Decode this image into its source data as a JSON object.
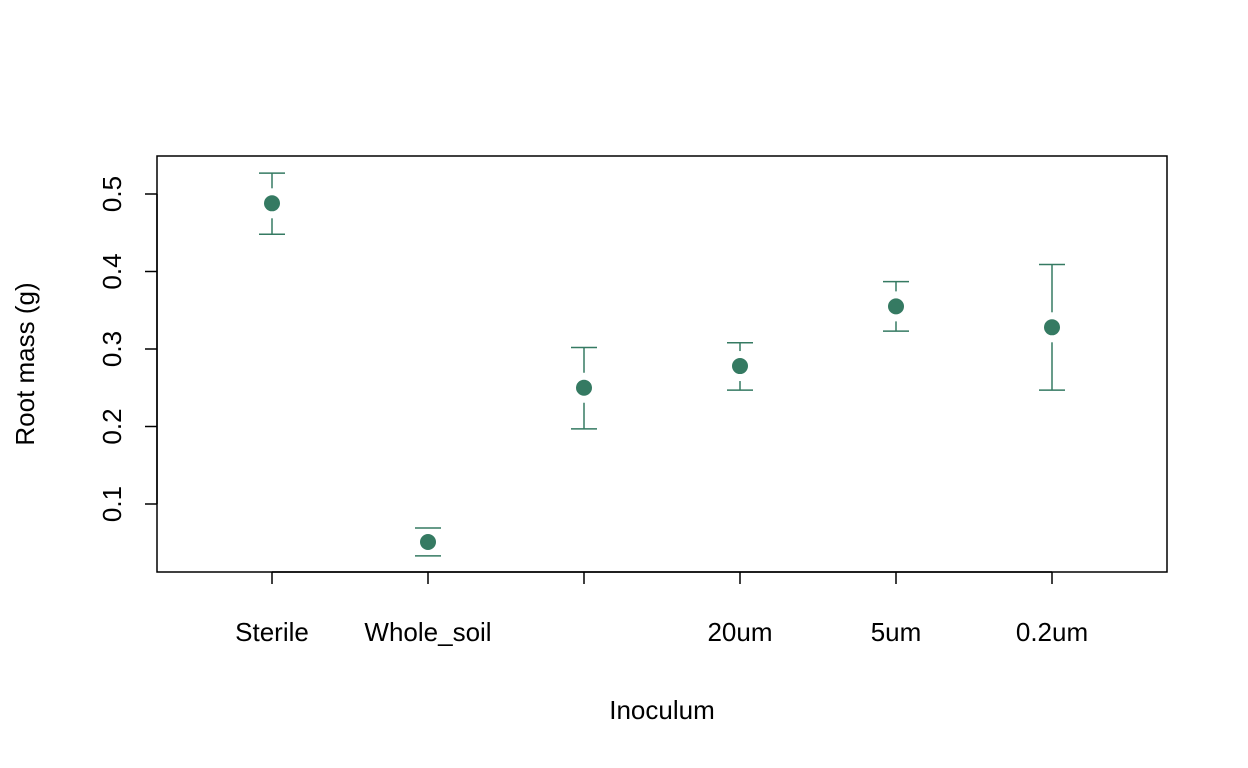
{
  "chart_data": {
    "type": "scatter",
    "title": "",
    "xlabel": "Inoculum",
    "ylabel": "Root mass (g)",
    "categories": [
      "Sterile",
      "Whole_soil",
      "",
      "20um",
      "5um",
      "0.2um"
    ],
    "series": [
      {
        "values": [
          0.488,
          0.051,
          0.25,
          0.278,
          0.355,
          0.328
        ],
        "lower": [
          0.448,
          0.033,
          0.197,
          0.247,
          0.323,
          0.247
        ],
        "upper": [
          0.527,
          0.069,
          0.302,
          0.308,
          0.387,
          0.409
        ]
      }
    ],
    "ylim": [
      0.03,
      0.55
    ],
    "yticks": [
      0.1,
      0.2,
      0.3,
      0.4,
      0.5
    ],
    "ytick_labels": [
      "0.1",
      "0.2",
      "0.3",
      "0.4",
      "0.5"
    ],
    "grid": false,
    "legend": "none",
    "colors": {
      "marker": "#357a62",
      "axis": "#000000"
    }
  }
}
